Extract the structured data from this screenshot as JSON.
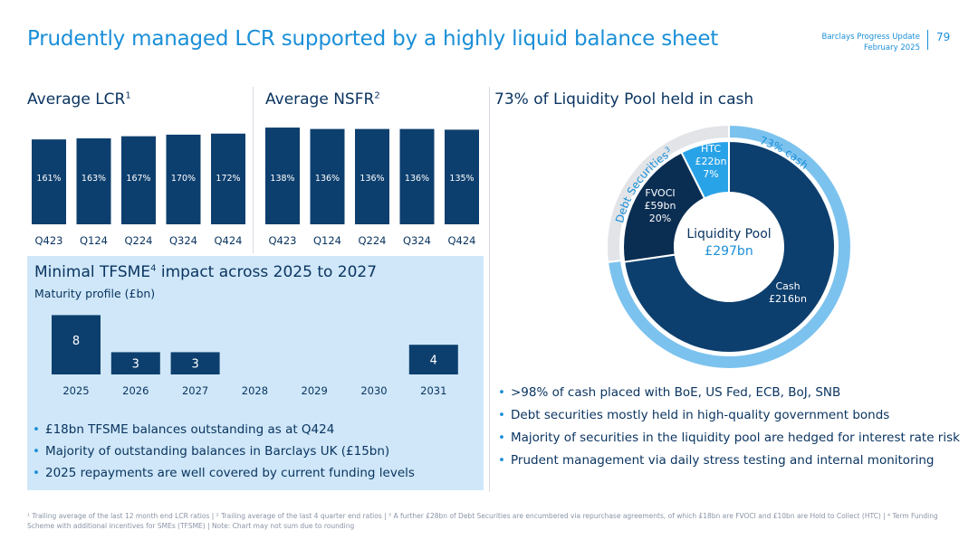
{
  "header": {
    "title": "Prudently managed LCR supported by a highly liquid balance sheet",
    "org_line": "Barclays Progress Update",
    "date_line": "February 2025",
    "page_number": "79"
  },
  "colors": {
    "accent": "#1a8fd8",
    "navy": "#0b3561",
    "bar_navy": "#0d3f6e",
    "light_blue_box": "#cfe7f8",
    "ring_light": "#7cc2ee",
    "ring_grey": "#e2e4e8",
    "donut_cash": "#0d3f6e",
    "donut_fvoci": "#0a2d52",
    "donut_htc": "#29a3e8"
  },
  "lcr": {
    "heading": "Average LCR",
    "footnote_mark": "1"
  },
  "nsfr": {
    "heading": "Average NSFR",
    "footnote_mark": "2"
  },
  "tfsme": {
    "heading": "Minimal TFSME",
    "heading_mark": "4",
    "heading_rest": " impact across 2025 to 2027",
    "subtitle": "Maturity profile (£bn)"
  },
  "pool": {
    "heading": "73% of Liquidity Pool held in cash",
    "center_title": "Liquidity Pool",
    "center_value": "£297bn",
    "outer_cash_label": "73% cash",
    "outer_debt_label": "Debt Securities",
    "outer_debt_mark": "3"
  },
  "chart_data": [
    {
      "type": "bar",
      "title": "Average LCR",
      "categories": [
        "Q423",
        "Q124",
        "Q224",
        "Q324",
        "Q424"
      ],
      "values": [
        161,
        163,
        167,
        170,
        172
      ],
      "data_labels": [
        "161%",
        "163%",
        "167%",
        "170%",
        "172%"
      ],
      "ylim": [
        0,
        200
      ]
    },
    {
      "type": "bar",
      "title": "Average NSFR",
      "categories": [
        "Q423",
        "Q124",
        "Q224",
        "Q324",
        "Q424"
      ],
      "values": [
        138,
        136,
        136,
        136,
        135
      ],
      "data_labels": [
        "138%",
        "136%",
        "136%",
        "136%",
        "135%"
      ],
      "ylim": [
        0,
        160
      ]
    },
    {
      "type": "bar",
      "title": "Maturity profile (£bn)",
      "categories": [
        "2025",
        "2026",
        "2027",
        "2028",
        "2029",
        "2030",
        "2031"
      ],
      "values": [
        8,
        3,
        3,
        0,
        0,
        0,
        4
      ],
      "data_labels": [
        "8",
        "3",
        "3",
        "",
        "",
        "",
        "4"
      ],
      "ylim": [
        0,
        8.5
      ]
    },
    {
      "type": "pie",
      "title": "Liquidity Pool £297bn",
      "slices": [
        {
          "name": "Cash",
          "value": 216,
          "label_lines": [
            "Cash",
            "£216bn"
          ]
        },
        {
          "name": "FVOCI",
          "value": 59,
          "label_lines": [
            "FVOCI",
            "£59bn",
            "20%"
          ]
        },
        {
          "name": "HTC",
          "value": 22,
          "label_lines": [
            "HTC",
            "£22bn",
            "7%"
          ]
        }
      ],
      "outer_ring": [
        {
          "name": "73% cash",
          "value": 73
        },
        {
          "name": "Debt Securities",
          "value": 27
        }
      ]
    }
  ],
  "tfsme_bullets": [
    "£18bn TFSME balances outstanding as at Q424",
    "Majority of outstanding balances in Barclays UK (£15bn)",
    "2025 repayments are well covered by current funding levels"
  ],
  "pool_bullets": [
    ">98% of cash placed with BoE, US Fed, ECB, BoJ, SNB",
    "Debt securities mostly held in high-quality government bonds",
    "Majority of securities in the liquidity pool are hedged for interest rate risk",
    "Prudent management via daily stress testing and internal monitoring"
  ],
  "footnotes": "¹ Trailing average of the last 12 month end LCR ratios | ² Trailing average of the last 4 quarter end ratios | ³ A further £28bn of Debt Securities are encumbered via repurchase agreements, of which £18bn are FVOCI and £10bn are Hold to Collect (HTC) | ⁴ Term Funding Scheme with additional incentives for SMEs (TFSME) | Note: Chart may not sum due to rounding"
}
